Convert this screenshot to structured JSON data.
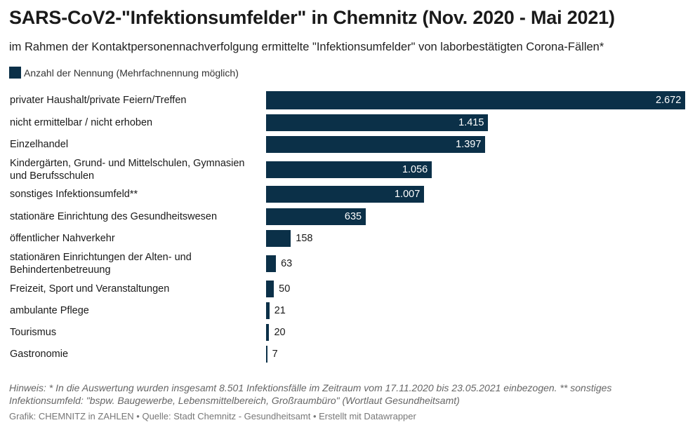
{
  "title": "SARS-CoV2-\"Infektionsumfelder\" in Chemnitz (Nov. 2020 - Mai 2021)",
  "subtitle": "im Rahmen der Kontaktpersonennachverfolgung ermittelte \"Infektionsumfelder\" von laborbestätigten Corona-Fällen*",
  "legend_label": "Anzahl der Nennung (Mehrfachnennung möglich)",
  "colors": {
    "bar": "#0b3048"
  },
  "chart_data": {
    "type": "bar",
    "orientation": "horizontal",
    "categories": [
      "privater Haushalt/private Feiern/Treffen",
      "nicht ermittelbar / nicht erhoben",
      "Einzelhandel",
      "Kindergärten, Grund- und Mittelschulen, Gymnasien und Berufsschulen",
      "sonstiges Infektionsumfeld**",
      "stationäre Einrichtung des Gesundheitswesen",
      "öffentlicher Nahverkehr",
      "stationären Einrichtungen der Alten- und Behindertenbetreuung",
      "Freizeit, Sport und Veranstaltungen",
      "ambulante Pflege",
      "Tourismus",
      "Gastronomie"
    ],
    "values": [
      2672,
      1415,
      1397,
      1056,
      1007,
      635,
      158,
      63,
      50,
      21,
      20,
      7
    ],
    "value_labels": [
      "2.672",
      "1.415",
      "1.397",
      "1.056",
      "1.007",
      "635",
      "158",
      "63",
      "50",
      "21",
      "20",
      "7"
    ],
    "series": [
      {
        "name": "Anzahl der Nennung (Mehrfachnennung möglich)",
        "values": [
          2672,
          1415,
          1397,
          1056,
          1007,
          635,
          158,
          63,
          50,
          21,
          20,
          7
        ]
      }
    ],
    "xlim": [
      0,
      2672
    ],
    "legend": "top-left",
    "grid": false
  },
  "notes": "Hinweis: * In die Auswertung wurden insgesamt 8.501 Infektionsfälle im Zeitraum vom 17.11.2020 bis 23.05.2021 einbezogen. ** sonstiges Infektionsumfeld: \"bspw. Baugewerbe, Lebensmittelbereich, Großraumbüro\" (Wortlaut Gesundheitsamt)",
  "footer": "Grafik: CHEMNITZ in ZAHLEN • Quelle: Stadt Chemnitz - Gesundheitsamt • Erstellt mit Datawrapper"
}
